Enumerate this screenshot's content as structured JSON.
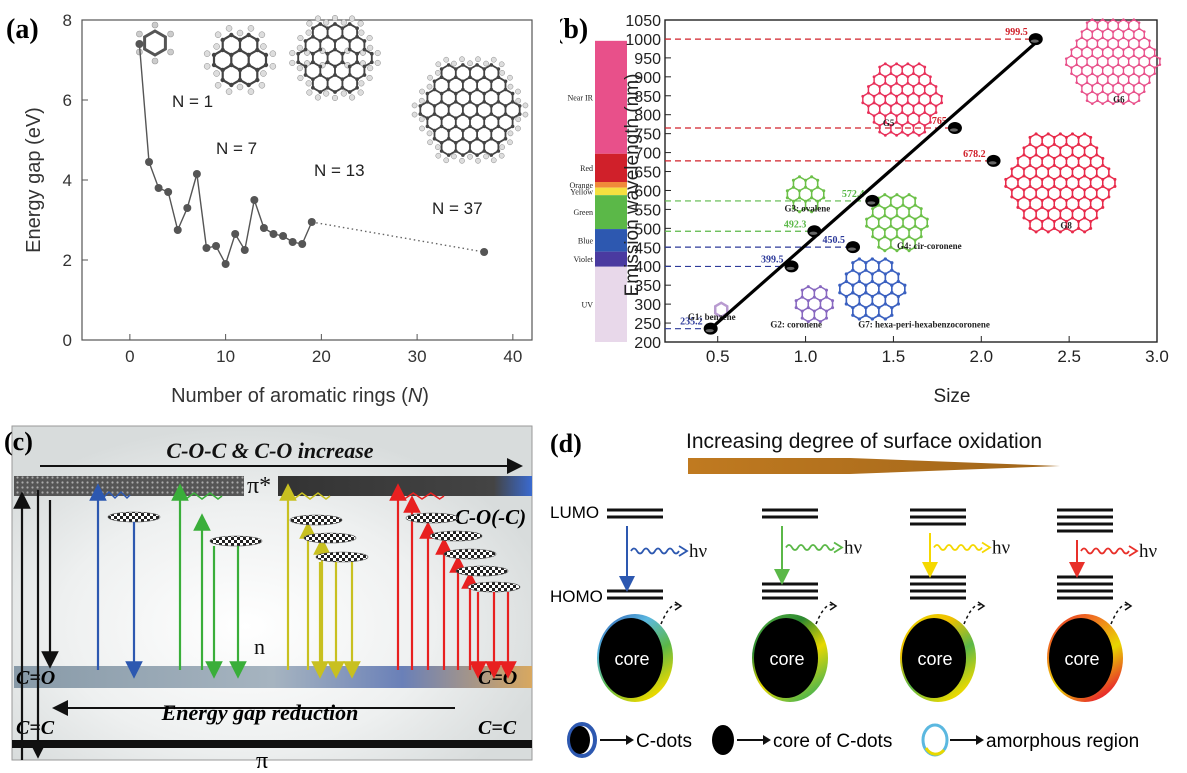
{
  "panel_a": {
    "label": "(a)",
    "xlabel": "Number of aromatic rings (",
    "xlabel_var": "N",
    "xlabel_end": ")",
    "ylabel": "Energy gap (eV)",
    "annotations": [
      "N = 1",
      "N = 7",
      "N = 13",
      "N = 37"
    ]
  },
  "panel_b": {
    "label": "(b)",
    "xlabel": "Size",
    "ylabel": "Emission wavelength (nm)",
    "bands": [
      {
        "name": "Near IR",
        "color": "#e8508a"
      },
      {
        "name": "Red",
        "color": "#d0202a"
      },
      {
        "name": "Orange",
        "color": "#f08a3a"
      },
      {
        "name": "Yellow",
        "color": "#f5e040"
      },
      {
        "name": "Green",
        "color": "#5bb848"
      },
      {
        "name": "Blue",
        "color": "#2d58b0"
      },
      {
        "name": "Violet",
        "color": "#4a3aa0"
      },
      {
        "name": "UV",
        "color": "#e8d8ea"
      }
    ],
    "molecules": [
      "G1: benzene",
      "G2: coronene",
      "G3: ovalene",
      "G4: cir-coronene",
      "G5",
      "G6",
      "G7: hexa-peri-hexabenzocoronene",
      "G8"
    ]
  },
  "panel_c": {
    "label": "(c)",
    "title": "C-O-C & C-O increase",
    "bottom_text": "Energy gap reduction",
    "pi_star": "π*",
    "pi": "π",
    "n_label": "n",
    "co_label": "C-O(-C)",
    "c_eq_o": "C=O",
    "c_eq_c": "C=C"
  },
  "panel_d": {
    "label": "(d)",
    "title": "Increasing degree of surface oxidation",
    "lumo": "LUMO",
    "homo": "HOMO",
    "hv": "hν",
    "core": "core",
    "legend": [
      "C-dots",
      "core of C-dots",
      "amorphous region"
    ],
    "colors": [
      "#2d58b0",
      "#5bb848",
      "#f5d800",
      "#e8302a"
    ]
  },
  "chart_data": [
    {
      "type": "line",
      "title": "",
      "xlabel": "Number of aromatic rings (N)",
      "ylabel": "Energy gap (eV)",
      "xlim": [
        -5,
        42
      ],
      "ylim": [
        0,
        8
      ],
      "xticks": [
        0,
        10,
        20,
        30,
        40
      ],
      "yticks": [
        0,
        2,
        4,
        6,
        8
      ],
      "x": [
        1,
        2,
        3,
        4,
        5,
        6,
        7,
        8,
        9,
        10,
        11,
        12,
        13,
        14,
        15,
        16,
        17,
        18,
        19
      ],
      "y": [
        7.4,
        4.45,
        3.8,
        3.7,
        2.75,
        3.3,
        4.15,
        2.3,
        2.35,
        1.9,
        2.65,
        2.25,
        3.5,
        2.8,
        2.65,
        2.6,
        2.45,
        2.4,
        2.95
      ],
      "extrapolation": {
        "x": [
          19,
          37
        ],
        "y": [
          2.95,
          2.2
        ]
      }
    },
    {
      "type": "scatter",
      "title": "",
      "xlabel": "Size",
      "ylabel": "Emission wavelength (nm)",
      "xlim": [
        0.2,
        3.0
      ],
      "ylim": [
        200,
        1050
      ],
      "xticks": [
        0.5,
        1.0,
        1.5,
        2.0,
        2.5,
        3.0
      ],
      "yticks": [
        200,
        250,
        300,
        350,
        400,
        450,
        500,
        550,
        600,
        650,
        700,
        750,
        800,
        850,
        900,
        950,
        1000,
        1050
      ],
      "points": [
        {
          "x": 0.46,
          "y": 235.2,
          "label": "235.2",
          "color": "#2d3a9a"
        },
        {
          "x": 0.92,
          "y": 399.5,
          "label": "399.5",
          "color": "#2d3a9a"
        },
        {
          "x": 1.05,
          "y": 492.3,
          "label": "492.3",
          "color": "#5bb848"
        },
        {
          "x": 1.27,
          "y": 450.5,
          "label": "450.5",
          "color": "#2d3a9a"
        },
        {
          "x": 1.38,
          "y": 572.4,
          "label": "572.4",
          "color": "#5bb848"
        },
        {
          "x": 1.85,
          "y": 765,
          "label": "765",
          "color": "#d0202a"
        },
        {
          "x": 2.07,
          "y": 678.2,
          "label": "678.2",
          "color": "#d0202a"
        },
        {
          "x": 2.31,
          "y": 999.5,
          "label": "999.5",
          "color": "#d0202a"
        }
      ],
      "fit_line": {
        "x": [
          0.46,
          2.31
        ],
        "y": [
          235.2,
          990
        ]
      }
    }
  ]
}
